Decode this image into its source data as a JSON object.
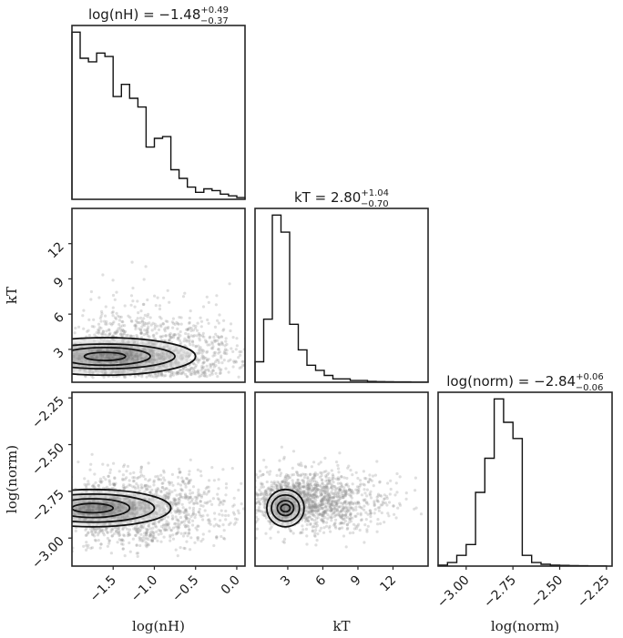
{
  "chart_data": {
    "type": "corner",
    "parameters": [
      "log(nH)",
      "kT",
      "log(norm)"
    ],
    "titles": [
      {
        "param": "log(nH)",
        "median": "−1.48",
        "plus": "+0.49",
        "minus": "−0.37"
      },
      {
        "param": "kT",
        "median": "2.80",
        "plus": "+1.04",
        "minus": "−0.70"
      },
      {
        "param": "log(norm)",
        "median": "−2.84",
        "plus": "+0.06",
        "minus": "−0.06"
      }
    ],
    "ranges": {
      "log(nH)": [
        -2.0,
        0.1
      ],
      "kT": [
        0.2,
        15.0
      ],
      "log(norm)": [
        -3.15,
        -2.22
      ]
    },
    "ticks": {
      "log(nH)": [
        {
          "v": -1.5,
          "label": "−1.5"
        },
        {
          "v": -1.0,
          "label": "−1.0"
        },
        {
          "v": -0.5,
          "label": "−0.5"
        },
        {
          "v": 0.0,
          "label": "0.0"
        }
      ],
      "kT": [
        {
          "v": 3,
          "label": "3"
        },
        {
          "v": 6,
          "label": "6"
        },
        {
          "v": 9,
          "label": "9"
        },
        {
          "v": 12,
          "label": "12"
        }
      ],
      "log(norm)": [
        {
          "v": -3.0,
          "label": "−3.00"
        },
        {
          "v": -2.75,
          "label": "−2.75"
        },
        {
          "v": -2.5,
          "label": "−2.50"
        },
        {
          "v": -2.25,
          "label": "−2.25"
        }
      ]
    },
    "histograms": [
      {
        "param": "log(nH)",
        "edges": [
          -2.0,
          -1.9,
          -1.8,
          -1.7,
          -1.6,
          -1.5,
          -1.4,
          -1.3,
          -1.2,
          -1.1,
          -1.0,
          -0.9,
          -0.8,
          -0.7,
          -0.6,
          -0.5,
          -0.4,
          -0.3,
          -0.2,
          -0.1,
          0.0,
          0.1
        ],
        "counts": [
          0.96,
          0.81,
          0.79,
          0.84,
          0.82,
          0.59,
          0.66,
          0.58,
          0.53,
          0.3,
          0.35,
          0.36,
          0.17,
          0.12,
          0.07,
          0.04,
          0.06,
          0.05,
          0.03,
          0.02,
          0.01
        ]
      },
      {
        "param": "kT",
        "edges": [
          0.2,
          0.94,
          1.68,
          2.42,
          3.16,
          3.9,
          4.64,
          5.38,
          6.12,
          6.86,
          7.6,
          8.34,
          9.08,
          9.82,
          10.56,
          11.3,
          12.04,
          12.78,
          13.52,
          14.26,
          15.0
        ],
        "counts": [
          0.12,
          0.37,
          0.98,
          0.88,
          0.34,
          0.19,
          0.1,
          0.07,
          0.04,
          0.02,
          0.02,
          0.01,
          0.01,
          0.005,
          0.004,
          0.003,
          0.002,
          0.002,
          0.001,
          0.001
        ]
      },
      {
        "param": "log(norm)",
        "edges": [
          -3.15,
          -3.1,
          -3.05,
          -3.0,
          -2.95,
          -2.9,
          -2.85,
          -2.8,
          -2.75,
          -2.7,
          -2.65,
          -2.6,
          -2.55,
          -2.5,
          -2.45,
          -2.4,
          -2.35,
          -2.3,
          -2.25
        ],
        "counts": [
          0.005,
          0.02,
          0.06,
          0.12,
          0.41,
          0.6,
          0.93,
          0.8,
          0.71,
          0.06,
          0.02,
          0.01,
          0.005,
          0.004,
          0.003,
          0.002,
          0.001,
          0.001
        ]
      }
    ],
    "scatter": [
      {
        "x": "log(nH)",
        "y": "kT",
        "cx": -1.3,
        "cy": 2.6,
        "sx": 0.5,
        "sy": 2.5,
        "n": 1500
      },
      {
        "x": "log(nH)",
        "y": "log(norm)",
        "cx": -1.4,
        "cy": -2.85,
        "sx": 0.45,
        "sy": 0.09,
        "n": 1500
      },
      {
        "x": "kT",
        "y": "log(norm)",
        "cx": 3.6,
        "cy": -2.8,
        "sx": 2.8,
        "sy": 0.08,
        "n": 1500
      }
    ],
    "contours": [
      {
        "x": "log(nH)",
        "y": "kT",
        "center": [
          -1.6,
          2.4
        ],
        "radii": [
          [
            0.25,
            0.35
          ],
          [
            0.55,
            0.75
          ],
          [
            0.85,
            1.05
          ],
          [
            1.1,
            1.6
          ]
        ]
      },
      {
        "x": "log(nH)",
        "y": "log(norm)",
        "center": [
          -1.75,
          -2.84
        ],
        "radii": [
          [
            0.25,
            0.025
          ],
          [
            0.45,
            0.05
          ],
          [
            0.75,
            0.075
          ],
          [
            0.95,
            0.1
          ]
        ]
      },
      {
        "x": "kT",
        "y": "log(norm)",
        "center": [
          2.8,
          -2.84
        ],
        "radii": [
          [
            0.4,
            0.02
          ],
          [
            0.7,
            0.04
          ],
          [
            1.2,
            0.07
          ],
          [
            1.6,
            0.1
          ]
        ]
      }
    ]
  }
}
